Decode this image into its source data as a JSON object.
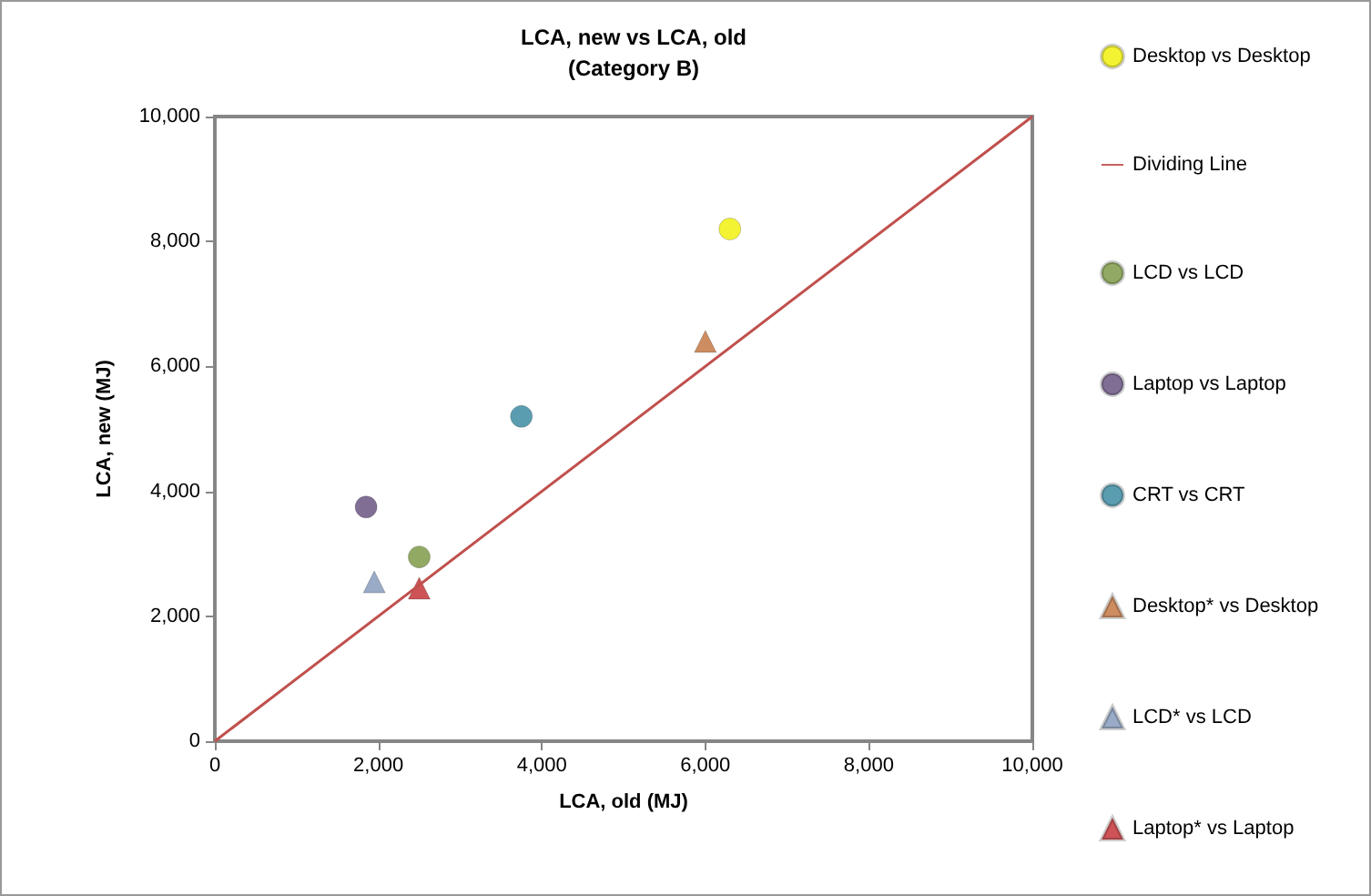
{
  "chart_data": {
    "type": "scatter",
    "title": "LCA, new vs LCA, old",
    "subtitle": "(Category B)",
    "xlabel": "LCA, old (MJ)",
    "ylabel": "LCA, new (MJ)",
    "xlim": [
      0,
      10000
    ],
    "xticks": [
      0,
      {
        "value": 2000,
        "label": "2,000"
      },
      {
        "value": 4000,
        "label": "4,000"
      },
      {
        "value": 6000,
        "label": "6,000"
      },
      {
        "value": 8000,
        "label": "8,000"
      },
      {
        "value": 10000,
        "label": "10,000"
      }
    ],
    "ylim": [
      0,
      10000
    ],
    "yticks": [
      0,
      {
        "value": 2000,
        "label": "2,000"
      },
      {
        "value": 4000,
        "label": "4,000"
      },
      {
        "value": 6000,
        "label": "6,000"
      },
      {
        "value": 8000,
        "label": "8,000"
      },
      {
        "value": 10000,
        "label": "10,000"
      }
    ],
    "grid": false,
    "legend": "right",
    "series": [
      {
        "name": "Desktop vs Desktop",
        "color": "#f0f000",
        "marker": "circle",
        "x": [
          6300
        ],
        "values": [
          8200
        ]
      },
      {
        "name": "Dividing Line",
        "type": "line",
        "color": "#c0504d",
        "marker": "none",
        "x": [
          0,
          10000
        ],
        "values": [
          0,
          10000
        ]
      },
      {
        "name": "LCD vs LCD",
        "color": "#77933c",
        "marker": "circle",
        "x": [
          2500
        ],
        "values": [
          2950
        ]
      },
      {
        "name": "Laptop vs Laptop",
        "color": "#604a7b",
        "marker": "circle",
        "x": [
          1850
        ],
        "values": [
          3750
        ]
      },
      {
        "name": "CRT vs CRT",
        "color": "#31859c",
        "marker": "circle",
        "x": [
          3750
        ],
        "values": [
          5200
        ]
      },
      {
        "name": "Desktop* vs Desktop",
        "color": "#c0703a",
        "marker": "triangle",
        "x": [
          6000
        ],
        "values": [
          6400
        ]
      },
      {
        "name": "LCD* vs LCD",
        "color": "#8096b8",
        "marker": "triangle",
        "x": [
          1950
        ],
        "values": [
          2550
        ]
      },
      {
        "name": "Laptop* vs Laptop",
        "color": "#c0282c",
        "marker": "triangle",
        "x": [
          2500
        ],
        "values": [
          2450
        ]
      }
    ]
  }
}
